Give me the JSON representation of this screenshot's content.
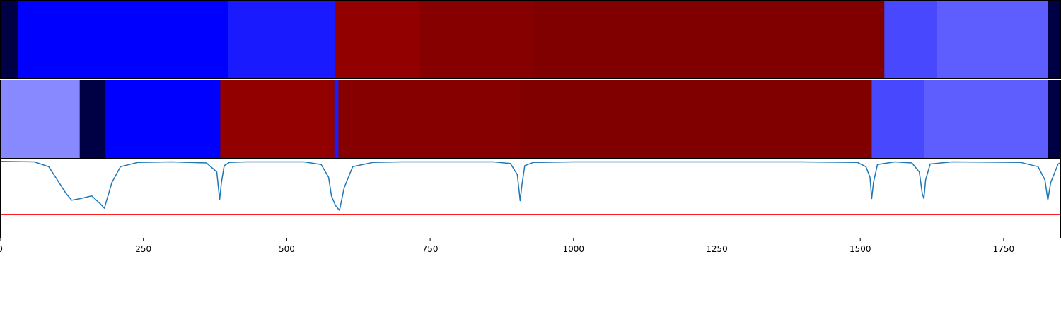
{
  "chart_data": [
    {
      "type": "heatmap",
      "title": "",
      "xlim": [
        0,
        1850
      ],
      "segments": [
        {
          "start": 0,
          "end": 31,
          "color": "#000044"
        },
        {
          "start": 31,
          "end": 397,
          "color": "#0000ff"
        },
        {
          "start": 397,
          "end": 584,
          "color": "#1a1aff"
        },
        {
          "start": 584,
          "end": 732,
          "color": "#920000"
        },
        {
          "start": 732,
          "end": 930,
          "color": "#870000"
        },
        {
          "start": 930,
          "end": 1542,
          "color": "#800000"
        },
        {
          "start": 1542,
          "end": 1634,
          "color": "#4848ff"
        },
        {
          "start": 1634,
          "end": 1827,
          "color": "#5e5eff"
        },
        {
          "start": 1827,
          "end": 1850,
          "color": "#000044"
        }
      ]
    },
    {
      "type": "heatmap",
      "title": "",
      "xlim": [
        0,
        1850
      ],
      "segments": [
        {
          "start": 0,
          "end": 139,
          "color": "#8888ff"
        },
        {
          "start": 139,
          "end": 184,
          "color": "#000044"
        },
        {
          "start": 184,
          "end": 384,
          "color": "#0000ff"
        },
        {
          "start": 384,
          "end": 583,
          "color": "#920000"
        },
        {
          "start": 583,
          "end": 590,
          "color": "#1a1aff"
        },
        {
          "start": 590,
          "end": 907,
          "color": "#870000"
        },
        {
          "start": 907,
          "end": 1520,
          "color": "#800000"
        },
        {
          "start": 1520,
          "end": 1611,
          "color": "#4848ff"
        },
        {
          "start": 1611,
          "end": 1827,
          "color": "#5e5eff"
        },
        {
          "start": 1827,
          "end": 1850,
          "color": "#000044"
        }
      ]
    },
    {
      "type": "line",
      "title": "",
      "xlabel": "",
      "ylabel": "",
      "xlim": [
        0,
        1850
      ],
      "ylim": [
        -1.45,
        0.05
      ],
      "grid": false,
      "xticks": [
        0,
        250,
        500,
        750,
        1000,
        1250,
        1500,
        1750
      ],
      "threshold": {
        "value": -1.0,
        "color": "#ff0000"
      },
      "series": [
        {
          "color": "#1f77b4",
          "x": [
            0,
            60,
            85,
            100,
            115,
            125,
            140,
            160,
            175,
            182,
            195,
            210,
            240,
            300,
            360,
            378,
            383,
            386,
            391,
            400,
            430,
            530,
            560,
            573,
            578,
            585,
            592,
            600,
            615,
            650,
            700,
            860,
            890,
            902,
            907,
            910,
            915,
            930,
            1000,
            1400,
            1495,
            1510,
            1517,
            1520,
            1523,
            1530,
            1560,
            1590,
            1603,
            1608,
            1611,
            1614,
            1622,
            1660,
            1780,
            1810,
            1822,
            1827,
            1832,
            1845,
            1850
          ],
          "y": [
            0.0,
            -0.01,
            -0.1,
            -0.35,
            -0.6,
            -0.73,
            -0.7,
            -0.65,
            -0.8,
            -0.88,
            -0.4,
            -0.1,
            -0.02,
            -0.01,
            -0.03,
            -0.2,
            -0.72,
            -0.4,
            -0.08,
            -0.02,
            -0.01,
            -0.01,
            -0.06,
            -0.3,
            -0.65,
            -0.83,
            -0.92,
            -0.5,
            -0.1,
            -0.02,
            -0.01,
            -0.01,
            -0.04,
            -0.25,
            -0.74,
            -0.45,
            -0.08,
            -0.02,
            -0.01,
            -0.01,
            -0.02,
            -0.1,
            -0.3,
            -0.7,
            -0.4,
            -0.06,
            -0.01,
            -0.03,
            -0.2,
            -0.6,
            -0.7,
            -0.35,
            -0.05,
            -0.01,
            -0.02,
            -0.1,
            -0.35,
            -0.73,
            -0.4,
            -0.05,
            -0.02
          ]
        }
      ]
    }
  ]
}
